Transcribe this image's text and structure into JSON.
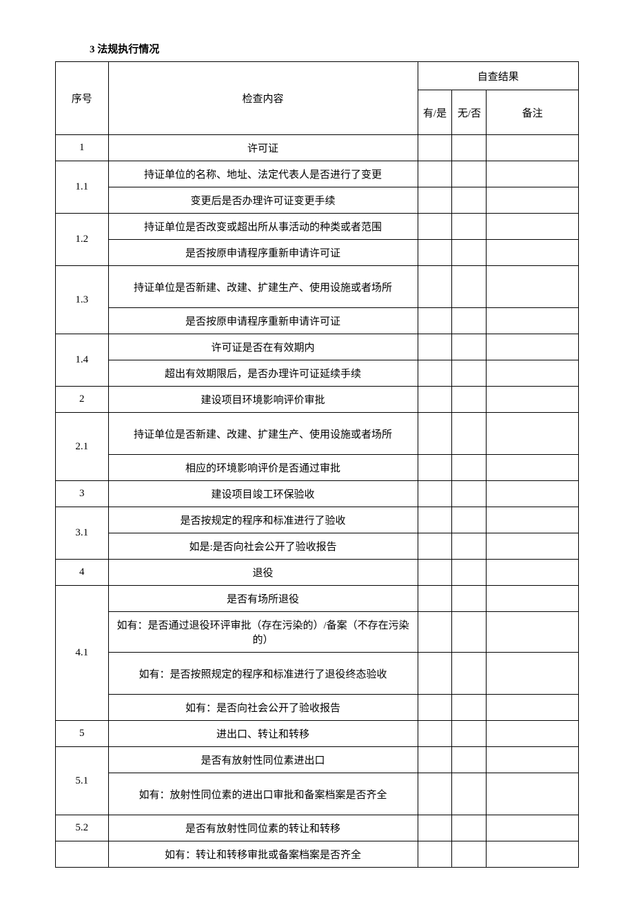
{
  "title": "3 法规执行情况",
  "headers": {
    "seq": "序号",
    "content": "检查内容",
    "result_group": "自查结果",
    "yes": "有/是",
    "no": "无/否",
    "remark": "备注"
  },
  "rows": [
    {
      "num": "1",
      "content": "许可证",
      "num_rowspan": 1
    },
    {
      "num": "1.1",
      "content": "持证单位的名称、地址、法定代表人是否进行了变更",
      "num_rowspan": 2
    },
    {
      "content": "变更后是否办理许可证变更手续"
    },
    {
      "num": "1.2",
      "content": "持证单位是否改变或超出所从事活动的种类或者范围",
      "num_rowspan": 2
    },
    {
      "content": "是否按原申请程序重新申请许可证"
    },
    {
      "num": "1.3",
      "content": "持证单位是否新建、改建、扩建生产、使用设施或者场所",
      "num_rowspan": 2,
      "tall": true
    },
    {
      "content": "是否按原申请程序重新申请许可证"
    },
    {
      "num": "1.4",
      "content": "许可证是否在有效期内",
      "num_rowspan": 2
    },
    {
      "content": "超出有效期限后，是否办理许可证延续手续"
    },
    {
      "num": "2",
      "content": "建设项目环境影响评价审批",
      "num_rowspan": 1
    },
    {
      "num": "2.1",
      "content": "持证单位是否新建、改建、扩建生产、使用设施或者场所",
      "num_rowspan": 2,
      "tall": true
    },
    {
      "content": "相应的环境影响评价是否通过审批"
    },
    {
      "num": "3",
      "content": "建设项目竣工环保验收",
      "num_rowspan": 1
    },
    {
      "num": "3.1",
      "content": "是否按规定的程序和标准进行了验收",
      "num_rowspan": 2
    },
    {
      "content": "如是:是否向社会公开了验收报告"
    },
    {
      "num": "4",
      "content": "退役",
      "num_rowspan": 1
    },
    {
      "num": "4.1",
      "content": "是否有场所退役",
      "num_rowspan": 4
    },
    {
      "content": "如有：是否通过退役环评审批（存在污染的）/备案（不存在污染的）"
    },
    {
      "content": "如有：是否按照规定的程序和标准进行了退役终态验收",
      "tall": true
    },
    {
      "content": "如有：是否向社会公开了验收报告"
    },
    {
      "num": "5",
      "content": "进出口、转让和转移",
      "num_rowspan": 1
    },
    {
      "num": "5.1",
      "content": "是否有放射性同位素进出口",
      "num_rowspan": 2
    },
    {
      "content": "如有：放射性同位素的进出口审批和备案档案是否齐全",
      "tall": true
    },
    {
      "num": "5.2",
      "content": "是否有放射性同位素的转让和转移",
      "num_rowspan": 1
    },
    {
      "num": "",
      "content": "如有：转让和转移审批或备案档案是否齐全",
      "num_rowspan": 1
    }
  ]
}
